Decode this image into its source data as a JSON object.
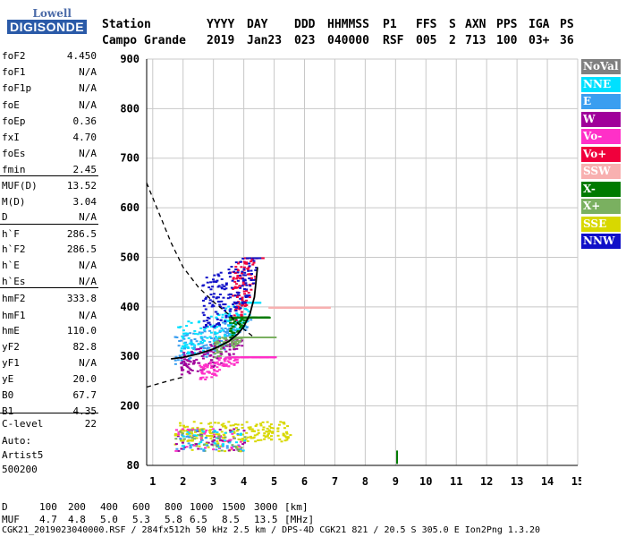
{
  "logo": {
    "line1": "Lowell",
    "line2": "DIGISONDE"
  },
  "header": {
    "row1": [
      "Station",
      "YYYY",
      "DAY",
      "DDD",
      "HHMMSS",
      "P1",
      "FFS",
      "S",
      "AXN",
      "PPS",
      "IGA",
      "PS"
    ],
    "row2": [
      "Campo Grande",
      "2019",
      "Jan23",
      "023",
      "040000",
      "RSF",
      "005",
      "2",
      "713",
      "100",
      "03+",
      "36"
    ]
  },
  "params": [
    {
      "k": "foF2",
      "v": "4.450"
    },
    {
      "k": "foF1",
      "v": "N/A"
    },
    {
      "k": "foF1p",
      "v": "N/A"
    },
    {
      "k": "foE",
      "v": "N/A"
    },
    {
      "k": "foEp",
      "v": "0.36"
    },
    {
      "k": "fxI",
      "v": "4.70"
    },
    {
      "k": "foEs",
      "v": "N/A"
    },
    {
      "k": "fmin",
      "v": "2.45"
    },
    {
      "k": "MUF(D)",
      "v": "13.52"
    },
    {
      "k": "M(D)",
      "v": "3.04"
    },
    {
      "k": "D",
      "v": "N/A"
    },
    {
      "k": "h`F",
      "v": "286.5"
    },
    {
      "k": "h`F2",
      "v": "286.5"
    },
    {
      "k": "h`E",
      "v": "N/A"
    },
    {
      "k": "h`Es",
      "v": "N/A"
    },
    {
      "k": "hmF2",
      "v": "333.8"
    },
    {
      "k": "hmF1",
      "v": "N/A"
    },
    {
      "k": "hmE",
      "v": "110.0"
    },
    {
      "k": "yF2",
      "v": "82.8"
    },
    {
      "k": "yF1",
      "v": "N/A"
    },
    {
      "k": "yE",
      "v": "20.0"
    },
    {
      "k": "B0",
      "v": "67.7"
    },
    {
      "k": "B1",
      "v": "4.35"
    },
    {
      "k": "C-level",
      "v": "22"
    }
  ],
  "notes": [
    "Auto:",
    "Artist5",
    "500200"
  ],
  "legend": [
    {
      "label": "NoVal",
      "color": "#808080"
    },
    {
      "label": "NNE",
      "color": "#00e0ff"
    },
    {
      "label": "E",
      "color": "#3a9ef0"
    },
    {
      "label": "W",
      "color": "#a0009a"
    },
    {
      "label": "Vo-",
      "color": "#ff30c8"
    },
    {
      "label": "Vo+",
      "color": "#f0003c"
    },
    {
      "label": "SSW",
      "color": "#f8b0b0"
    },
    {
      "label": "X-",
      "color": "#007a00"
    },
    {
      "label": "X+",
      "color": "#7ab060"
    },
    {
      "label": "SSE",
      "color": "#d8d800"
    },
    {
      "label": "NNW",
      "color": "#1010c8"
    }
  ],
  "chart_data": {
    "type": "scatter",
    "xlim": [
      0.8,
      15
    ],
    "ylim": [
      80,
      900
    ],
    "x_ticks": [
      1,
      2,
      3,
      4,
      5,
      6,
      7,
      8,
      9,
      10,
      11,
      12,
      13,
      14,
      15
    ],
    "y_ticks": [
      80,
      200,
      300,
      400,
      500,
      600,
      700,
      800,
      900
    ],
    "grid": true,
    "trace_curve": {
      "x": [
        1.6,
        2.0,
        2.5,
        3.0,
        3.5,
        3.8,
        4.0,
        4.2,
        4.35,
        4.45
      ],
      "y": [
        295,
        298,
        305,
        315,
        330,
        345,
        360,
        385,
        420,
        480
      ]
    },
    "dashed_profile_upper": {
      "x": [
        0.8,
        1.2,
        1.6,
        2.0,
        2.5,
        3.0,
        3.5,
        4.0,
        4.3
      ],
      "y": [
        650,
        590,
        530,
        480,
        440,
        410,
        385,
        355,
        340
      ]
    },
    "dashed_profile_lower": {
      "x": [
        0.8,
        1.2,
        1.6,
        2.0
      ],
      "y": [
        238,
        245,
        252,
        258
      ]
    },
    "clusters": [
      {
        "color": "#3a9ef0",
        "x": [
          1.7,
          4.3
        ],
        "y": [
          280,
          380
        ]
      },
      {
        "color": "#00e0ff",
        "x": [
          1.8,
          4.5
        ],
        "y": [
          290,
          410
        ]
      },
      {
        "color": "#a0009a",
        "x": [
          1.9,
          4.6
        ],
        "y": [
          260,
          340
        ]
      },
      {
        "color": "#ff30c8",
        "x": [
          2.5,
          5.0
        ],
        "y": [
          245,
          300
        ]
      },
      {
        "color": "#f0003c",
        "x": [
          3.6,
          4.6
        ],
        "y": [
          300,
          500
        ]
      },
      {
        "color": "#f8b0b0",
        "x": [
          4.8,
          6.8
        ],
        "y": [
          340,
          400
        ]
      },
      {
        "color": "#7ab060",
        "x": [
          3.0,
          5.0
        ],
        "y": [
          280,
          340
        ]
      },
      {
        "color": "#d8d800",
        "x": [
          1.8,
          5.5
        ],
        "y": [
          130,
          170
        ]
      },
      {
        "color": "#1010c8",
        "x": [
          2.6,
          4.5
        ],
        "y": [
          320,
          500
        ]
      },
      {
        "color": "#007a00",
        "x": [
          3.5,
          4.8
        ],
        "y": [
          300,
          380
        ]
      }
    ],
    "spike": {
      "x": 9.05,
      "y": [
        83,
        110
      ],
      "color": "#007a00"
    }
  },
  "bottom": {
    "row1": [
      "D",
      "100",
      "200",
      "400",
      "600",
      "800",
      "1000",
      "1500",
      "3000",
      "[km]"
    ],
    "row2": [
      "MUF",
      "4.7",
      "4.8",
      "5.0",
      "5.3",
      "5.8",
      "6.5",
      "8.5",
      "13.5",
      "[MHz]"
    ],
    "row3": "CGK21_2019023040000.RSF / 284fx512h 50 kHz 2.5 km / DPS-4D CGK21 821 / 20.5 S 305.0 E Ion2Png 1.3.20"
  }
}
